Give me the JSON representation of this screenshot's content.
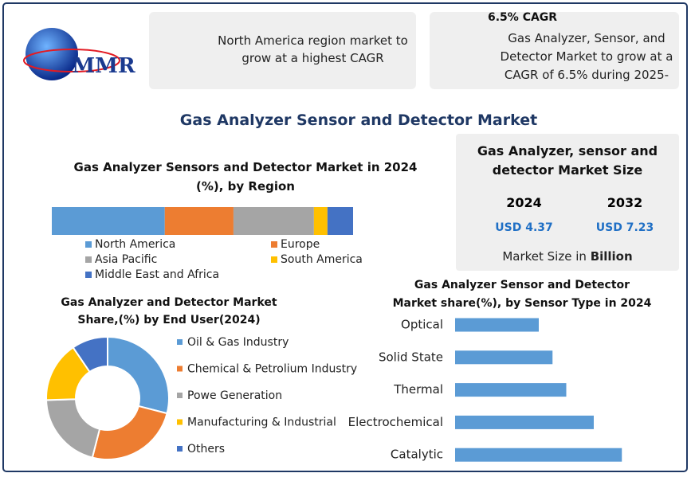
{
  "logo": {
    "text": "MMR"
  },
  "cards": [
    {
      "text": "North America region market to grow at a highest CAGR"
    },
    {
      "heading": "6.5% CAGR",
      "text": "Gas Analyzer, Sensor, and Detector Market to grow at a CAGR of 6.5% during 2025-"
    }
  ],
  "title": "Gas Analyzer Sensor and Detector Market",
  "market_size": {
    "title": "Gas Analyzer, sensor and detector Market Size",
    "years": [
      "2024",
      "2032"
    ],
    "values": [
      "USD 4.37",
      "USD 7.23"
    ],
    "note": "Market Size in",
    "unit": "Billion"
  },
  "chart_data": [
    {
      "type": "stacked_bar",
      "title": "Gas Analyzer Sensors and Detector Market in 2024 (%), by Region",
      "series": [
        {
          "name": "North America",
          "color": "#5b9bd5",
          "values": [
            37.5
          ]
        },
        {
          "name": "Europe",
          "color": "#ed7d31",
          "values": [
            22.8
          ]
        },
        {
          "name": "Asia Pacific",
          "color": "#a5a5a5",
          "values": [
            26.7
          ]
        },
        {
          "name": "South America",
          "color": "#ffc000",
          "values": [
            4.5
          ]
        },
        {
          "name": "Middle East and Africa",
          "color": "#4472c4",
          "values": [
            8.5
          ]
        }
      ]
    },
    {
      "type": "donut",
      "title": "Gas Analyzer and Detector Market Share,(%) by End User(2024)",
      "categories": [
        "Oil & Gas Industry",
        "Chemical & Petrolium Industry",
        "Powe Generation",
        "Manufacturing & Industrial",
        "Others"
      ],
      "values": [
        29,
        25,
        20.5,
        16,
        9.5
      ],
      "colors": [
        "#5b9bd5",
        "#ed7d31",
        "#a5a5a5",
        "#ffc000",
        "#4472c4"
      ]
    },
    {
      "type": "hbar",
      "title": "Gas Analyzer Sensor and Detector Market share(%), by Sensor Type in 2024",
      "categories": [
        "Optical",
        "Solid State",
        "Thermal",
        "Electrochemical",
        "Catalytic"
      ],
      "values": [
        14.0,
        16.3,
        18.6,
        23.2,
        27.9
      ],
      "color": "#5b9bd5"
    }
  ]
}
